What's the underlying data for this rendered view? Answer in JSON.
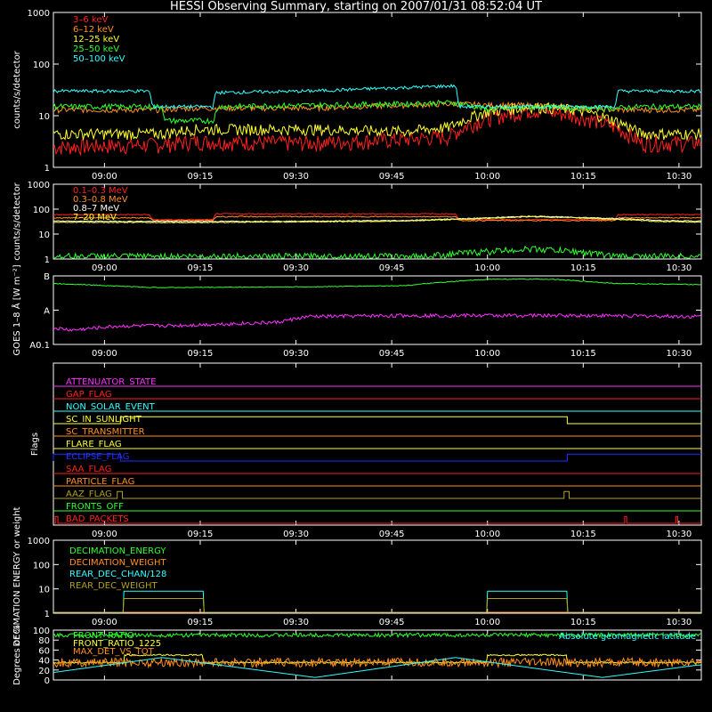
{
  "title": "HESSI Observing Summary, starting on 2007/01/31 08:52:04 UT",
  "time_ticks": [
    "09:00",
    "09:15",
    "09:30",
    "09:45",
    "10:00",
    "10:15",
    "10:30"
  ],
  "time_tick_minutes": [
    8,
    23,
    38,
    53,
    68,
    83,
    98
  ],
  "time_range_minutes": [
    0,
    101.5
  ],
  "chart_data": [
    {
      "type": "line",
      "panel": "low-energy-lightcurves",
      "ylabel": "counts/s/detector",
      "yscale": "log",
      "ylim": [
        1,
        1000
      ],
      "yticks": [
        "1",
        "10",
        "100",
        "1000"
      ],
      "yticks_values": [
        1,
        10,
        100,
        1000
      ],
      "series": [
        {
          "name": "3–6 keV",
          "color": "#ff2020",
          "x": [
            0,
            17,
            22,
            40,
            55,
            62,
            68,
            75,
            82,
            88,
            92,
            101
          ],
          "y": [
            2.5,
            2.8,
            3.2,
            3.0,
            3.5,
            4,
            9,
            13,
            10,
            6,
            3,
            3
          ]
        },
        {
          "name": "6–12 keV",
          "color": "#ff9020",
          "x": [
            0,
            17,
            22,
            40,
            55,
            63,
            68,
            75,
            82,
            88,
            92,
            101
          ],
          "y": [
            13,
            13,
            14,
            14,
            16,
            17,
            16,
            16,
            14,
            13,
            13,
            13
          ]
        },
        {
          "name": "12–25 keV",
          "color": "#ffff30",
          "x": [
            0,
            17,
            22,
            40,
            55,
            62,
            68,
            75,
            82,
            88,
            92,
            101
          ],
          "y": [
            4.5,
            4.5,
            5.5,
            5.5,
            5,
            6,
            12,
            15,
            13,
            8,
            4.5,
            4.5
          ]
        },
        {
          "name": "25–50 keV",
          "color": "#30ff30",
          "x": [
            0,
            17,
            17.5,
            25,
            26,
            40,
            55,
            63,
            68,
            75,
            82,
            88,
            92,
            101
          ],
          "y": [
            15,
            15,
            8,
            8,
            15,
            16,
            17,
            18,
            13,
            15,
            14,
            14,
            15,
            15
          ]
        },
        {
          "name": "50–100 keV",
          "color": "#30ffff",
          "x": [
            0,
            15,
            15.5,
            25,
            25.5,
            40,
            55,
            63,
            63.5,
            88,
            88.5,
            101
          ],
          "y": [
            30,
            30,
            15,
            15,
            28,
            30,
            35,
            38,
            15,
            15,
            30,
            30
          ]
        }
      ]
    },
    {
      "type": "line",
      "panel": "high-energy-lightcurves",
      "ylabel": "counts/s/detector",
      "yscale": "log",
      "ylim": [
        1,
        1000
      ],
      "yticks": [
        "1",
        "10",
        "100",
        "1000"
      ],
      "yticks_values": [
        1,
        10,
        100,
        1000
      ],
      "series": [
        {
          "name": "0.1–0.3 MeV",
          "color": "#ff2020",
          "x": [
            0,
            15,
            15.5,
            25,
            25.5,
            63,
            63.5,
            88,
            88.5,
            101
          ],
          "y": [
            60,
            60,
            38,
            38,
            65,
            65,
            38,
            38,
            60,
            60
          ]
        },
        {
          "name": "0.3–0.8 MeV",
          "color": "#ff9020",
          "x": [
            0,
            15,
            15.5,
            25,
            25.5,
            63,
            63.5,
            88,
            88.5,
            101
          ],
          "y": [
            45,
            45,
            35,
            35,
            50,
            50,
            35,
            35,
            45,
            45
          ]
        },
        {
          "name": "0.8–7 MeV",
          "color": "#ffffff",
          "x": [
            0,
            20,
            40,
            55,
            65,
            75,
            85,
            95,
            101
          ],
          "y": [
            33,
            32,
            33,
            35,
            42,
            52,
            45,
            35,
            33
          ]
        },
        {
          "name": "7–20 MeV",
          "color": "#ffff30",
          "x": [
            0,
            20,
            40,
            55,
            65,
            75,
            85,
            95,
            101
          ],
          "y": [
            30,
            29,
            31,
            33,
            40,
            50,
            42,
            32,
            30
          ]
        },
        {
          "name": "",
          "color": "#30ff30",
          "x": [
            0,
            58,
            65,
            75,
            82,
            88,
            101
          ],
          "y": [
            1.3,
            1.3,
            1.8,
            2.6,
            2.0,
            1.3,
            1.3
          ]
        }
      ]
    },
    {
      "type": "line",
      "panel": "goes",
      "ylabel": "GOES 1–8 Å [W m⁻²]",
      "yscale": "log",
      "ylim": [
        1e-08,
        1e-06
      ],
      "yticks": [
        "A0.1",
        "A",
        "B"
      ],
      "yticks_values": [
        1e-08,
        1e-07,
        1e-06
      ],
      "series": [
        {
          "name": "",
          "color": "#30ff30",
          "x": [
            0,
            15,
            20,
            40,
            55,
            68,
            78,
            88,
            101
          ],
          "y": [
            6e-07,
            4.6e-07,
            4.6e-07,
            4.8e-07,
            5.2e-07,
            8e-07,
            8e-07,
            6e-07,
            5.6e-07
          ]
        },
        {
          "name": "",
          "color": "#ff30ff",
          "x": [
            0,
            3,
            10,
            20,
            35,
            40,
            55,
            70,
            85,
            101
          ],
          "y": [
            3e-08,
            2.6e-08,
            3.4e-08,
            3.6e-08,
            4.4e-08,
            6.5e-08,
            7e-08,
            7e-08,
            7e-08,
            6.5e-08
          ]
        }
      ]
    },
    {
      "type": "line",
      "panel": "flags",
      "ylabel": "Flags",
      "flags": [
        {
          "name": "ATTENUATOR_STATE",
          "color": "#ff30ff",
          "steps": []
        },
        {
          "name": "GAP_FLAG",
          "color": "#ff2020",
          "steps": []
        },
        {
          "name": "NON_SOLAR_EVENT",
          "color": "#30ffff",
          "steps": []
        },
        {
          "name": "SC_IN_SUNLIGHT",
          "color": "#ffff30",
          "steps": [
            [
              0,
              0
            ],
            [
              10.5,
              1
            ],
            [
              80.5,
              0
            ]
          ]
        },
        {
          "name": "SC_TRANSMITTER",
          "color": "#ff9020",
          "steps": []
        },
        {
          "name": "FLARE_FLAG",
          "color": "#ffff30",
          "steps": []
        },
        {
          "name": "ECLIPSE_FLAG",
          "color": "#2030ff",
          "steps": [
            [
              0,
              1
            ],
            [
              10.5,
              0
            ],
            [
              80.5,
              1
            ]
          ]
        },
        {
          "name": "SAA_FLAG",
          "color": "#ff2020",
          "steps": []
        },
        {
          "name": "PARTICLE_FLAG",
          "color": "#ff9020",
          "steps": []
        },
        {
          "name": "AAZ_FLAG",
          "color": "#b0a020",
          "steps": [
            [
              0,
              0
            ],
            [
              10,
              1
            ],
            [
              10.8,
              0
            ],
            [
              80,
              1
            ],
            [
              80.8,
              0
            ]
          ]
        },
        {
          "name": "FRONTS_OFF",
          "color": "#30ff30",
          "steps": []
        },
        {
          "name": "BAD_PACKETS",
          "color": "#ff2020",
          "steps": [
            [
              0,
              0
            ],
            [
              0.3,
              1
            ],
            [
              0.7,
              0
            ],
            [
              89.5,
              1
            ],
            [
              89.8,
              0
            ],
            [
              97.5,
              1
            ],
            [
              97.8,
              0
            ]
          ]
        }
      ]
    },
    {
      "type": "line",
      "panel": "decimation",
      "ylabel": "DECIMATION ENERGY or weight",
      "yscale": "log",
      "ylim": [
        1,
        1000
      ],
      "yticks": [
        "1",
        "10",
        "100",
        "1000"
      ],
      "yticks_values": [
        1,
        10,
        100,
        1000
      ],
      "series": [
        {
          "name": "DECIMATION_ENERGY",
          "color": "#30ff30",
          "x": [
            0,
            101
          ],
          "y": [
            1,
            1
          ]
        },
        {
          "name": "DECIMATION_WEIGHT",
          "color": "#ff9020",
          "x": [
            0,
            101
          ],
          "y": [
            1,
            1
          ]
        },
        {
          "name": "REAR_DEC_CHAN/128",
          "color": "#30ffff",
          "x": [
            0,
            11,
            11,
            23.5,
            23.5,
            68,
            68,
            80.5,
            80.5,
            101
          ],
          "y": [
            1,
            1,
            8,
            8,
            1,
            1,
            8,
            8,
            1,
            1
          ]
        },
        {
          "name": "REAR_DEC_WEIGHT",
          "color": "#b0a020",
          "x": [
            0,
            11,
            11,
            23.5,
            23.5,
            68,
            68,
            80.5,
            80.5,
            101
          ],
          "y": [
            1,
            1,
            4,
            4,
            1,
            1,
            4,
            4,
            1,
            1
          ]
        }
      ]
    },
    {
      "type": "line",
      "panel": "ratios",
      "ylabel": "Degrees or %",
      "ylim": [
        0,
        100
      ],
      "yticks": [
        "0",
        "20",
        "40",
        "60",
        "80",
        "100"
      ],
      "yticks_values": [
        0,
        20,
        40,
        60,
        80,
        100
      ],
      "series": [
        {
          "name": "FRONT_RATIO",
          "color": "#30ff30",
          "x": [
            0,
            101
          ],
          "y": [
            90,
            90
          ]
        },
        {
          "name": "FRONT_RATIO_1225",
          "color": "#ffff30",
          "x": [
            0,
            11,
            11,
            23.5,
            23.5,
            68,
            68,
            80.5,
            80.5,
            101
          ],
          "y": [
            35,
            35,
            50,
            50,
            35,
            35,
            50,
            50,
            35,
            35
          ]
        },
        {
          "name": "MAX_DET_VS_TOT",
          "color": "#ff9020",
          "x": [
            0,
            101
          ],
          "y": [
            35,
            35
          ]
        },
        {
          "name": "Absolute geomagnetic latitude",
          "color": "#30ffff",
          "x": [
            0,
            17,
            41,
            63,
            86,
            101
          ],
          "y": [
            15,
            45,
            5,
            45,
            5,
            30
          ]
        }
      ]
    }
  ]
}
